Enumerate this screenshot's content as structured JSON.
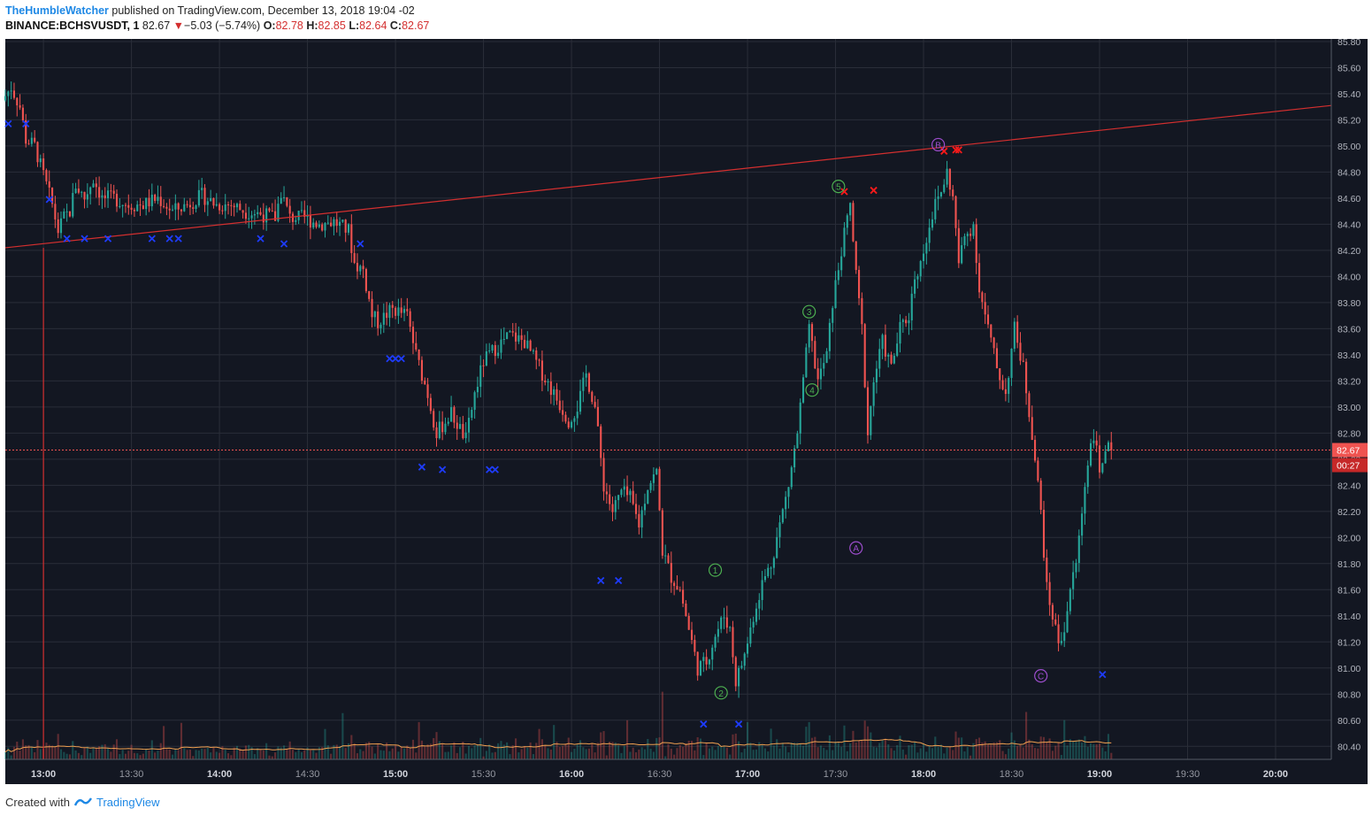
{
  "header": {
    "author": "TheHumbleWatcher",
    "published_text": "published on TradingView.com, December 13, 2018 19:04 -02",
    "symbol": "BINANCE:BCHSVUSDT, 1",
    "last": "82.67",
    "change_arrow": "▼",
    "change": "−5.03 (−5.74%)",
    "open_label": "O:",
    "open": "82.78",
    "high_label": "H:",
    "high": "82.85",
    "low_label": "L:",
    "low": "82.64",
    "close_label": "C:",
    "close": "82.67"
  },
  "footer": {
    "created_with": "Created with",
    "brand": "TradingView"
  },
  "price_tag": {
    "price": "82.67",
    "countdown": "00:27"
  },
  "colors": {
    "background": "#131722",
    "up": "#26a69a",
    "down": "#ef5350",
    "trendline": "#d32f2f",
    "current_line": "#ef5350",
    "grid": "#2a2e39",
    "blue_marker": "#1e3cff",
    "red_marker": "#ff1a1a",
    "wave_green": "#4caf50",
    "wave_purple": "#9c4dcc",
    "volume_ma": "#f0a050"
  },
  "chart_data": {
    "type": "candlestick",
    "x_axis_type": "time",
    "x_ticks": [
      "13:00",
      "13:30",
      "14:00",
      "14:30",
      "15:00",
      "15:30",
      "16:00",
      "16:30",
      "17:00",
      "17:30",
      "18:00",
      "18:30",
      "19:00",
      "19:30",
      "20:00"
    ],
    "x_range": [
      "12:47",
      "20:19"
    ],
    "y_ticks": [
      "80.40",
      "80.60",
      "80.80",
      "81.00",
      "81.20",
      "81.40",
      "81.60",
      "81.80",
      "82.00",
      "82.20",
      "82.40",
      "82.60",
      "82.80",
      "83.00",
      "83.20",
      "83.40",
      "83.60",
      "83.80",
      "84.00",
      "84.20",
      "84.40",
      "84.60",
      "84.80",
      "85.00",
      "85.20",
      "85.40",
      "85.60",
      "85.80"
    ],
    "y_range": [
      80.3,
      85.82
    ],
    "grid": true,
    "price_path": [
      [
        "12:47",
        85.35
      ],
      [
        "12:50",
        85.45
      ],
      [
        "12:53",
        85.3
      ],
      [
        "12:55",
        85.05
      ],
      [
        "12:58",
        85.0
      ],
      [
        "13:00",
        84.85
      ],
      [
        "13:02",
        84.7
      ],
      [
        "13:04",
        84.55
      ],
      [
        "13:06",
        84.35
      ],
      [
        "13:08",
        84.45
      ],
      [
        "13:10",
        84.5
      ],
      [
        "13:12",
        84.7
      ],
      [
        "13:15",
        84.6
      ],
      [
        "13:18",
        84.75
      ],
      [
        "13:21",
        84.6
      ],
      [
        "13:25",
        84.6
      ],
      [
        "13:30",
        84.55
      ],
      [
        "13:35",
        84.55
      ],
      [
        "13:40",
        84.6
      ],
      [
        "13:45",
        84.5
      ],
      [
        "13:50",
        84.55
      ],
      [
        "13:55",
        84.62
      ],
      [
        "14:00",
        84.55
      ],
      [
        "14:05",
        84.55
      ],
      [
        "14:10",
        84.5
      ],
      [
        "14:15",
        84.48
      ],
      [
        "14:20",
        84.45
      ],
      [
        "14:22",
        84.65
      ],
      [
        "14:25",
        84.45
      ],
      [
        "14:30",
        84.45
      ],
      [
        "14:35",
        84.4
      ],
      [
        "14:40",
        84.42
      ],
      [
        "14:45",
        84.35
      ],
      [
        "14:47",
        84.1
      ],
      [
        "14:50",
        84.05
      ],
      [
        "14:53",
        83.7
      ],
      [
        "14:55",
        83.65
      ],
      [
        "15:00",
        83.75
      ],
      [
        "15:05",
        83.7
      ],
      [
        "15:08",
        83.4
      ],
      [
        "15:12",
        83.1
      ],
      [
        "15:15",
        82.8
      ],
      [
        "15:20",
        82.95
      ],
      [
        "15:25",
        82.75
      ],
      [
        "15:28",
        83.1
      ],
      [
        "15:31",
        83.35
      ],
      [
        "15:35",
        83.45
      ],
      [
        "15:40",
        83.55
      ],
      [
        "15:45",
        83.5
      ],
      [
        "15:50",
        83.3
      ],
      [
        "15:55",
        83.1
      ],
      [
        "16:00",
        82.9
      ],
      [
        "16:03",
        83.0
      ],
      [
        "16:06",
        83.25
      ],
      [
        "16:09",
        83.0
      ],
      [
        "16:12",
        82.4
      ],
      [
        "16:15",
        82.2
      ],
      [
        "16:18",
        82.35
      ],
      [
        "16:21",
        82.3
      ],
      [
        "16:24",
        82.1
      ],
      [
        "16:27",
        82.4
      ],
      [
        "16:30",
        82.5
      ],
      [
        "16:32",
        81.9
      ],
      [
        "16:35",
        81.7
      ],
      [
        "16:38",
        81.6
      ],
      [
        "16:41",
        81.3
      ],
      [
        "16:44",
        81.0
      ],
      [
        "16:47",
        81.05
      ],
      [
        "16:50",
        81.25
      ],
      [
        "16:53",
        81.4
      ],
      [
        "16:55",
        81.3
      ],
      [
        "16:57",
        80.9
      ],
      [
        "17:00",
        81.1
      ],
      [
        "17:03",
        81.4
      ],
      [
        "17:06",
        81.65
      ],
      [
        "17:09",
        81.8
      ],
      [
        "17:12",
        82.1
      ],
      [
        "17:15",
        82.4
      ],
      [
        "17:18",
        82.8
      ],
      [
        "17:20",
        83.2
      ],
      [
        "17:22",
        83.6
      ],
      [
        "17:25",
        83.2
      ],
      [
        "17:28",
        83.4
      ],
      [
        "17:30",
        83.8
      ],
      [
        "17:33",
        84.2
      ],
      [
        "17:36",
        84.55
      ],
      [
        "17:38",
        84.0
      ],
      [
        "17:40",
        83.6
      ],
      [
        "17:42",
        82.8
      ],
      [
        "17:44",
        83.2
      ],
      [
        "17:47",
        83.5
      ],
      [
        "17:50",
        83.3
      ],
      [
        "17:53",
        83.6
      ],
      [
        "17:56",
        83.7
      ],
      [
        "17:58",
        84.0
      ],
      [
        "18:00",
        84.1
      ],
      [
        "18:03",
        84.4
      ],
      [
        "18:05",
        84.55
      ],
      [
        "18:07",
        84.65
      ],
      [
        "18:09",
        84.8
      ],
      [
        "18:11",
        84.6
      ],
      [
        "18:13",
        84.1
      ],
      [
        "18:15",
        84.3
      ],
      [
        "18:18",
        84.4
      ],
      [
        "18:20",
        83.9
      ],
      [
        "18:23",
        83.6
      ],
      [
        "18:26",
        83.3
      ],
      [
        "18:29",
        83.1
      ],
      [
        "18:32",
        83.6
      ],
      [
        "18:35",
        83.3
      ],
      [
        "18:38",
        82.8
      ],
      [
        "18:41",
        82.2
      ],
      [
        "18:43",
        81.6
      ],
      [
        "18:45",
        81.4
      ],
      [
        "18:47",
        81.2
      ],
      [
        "18:49",
        81.3
      ],
      [
        "18:51",
        81.6
      ],
      [
        "18:53",
        81.8
      ],
      [
        "18:55",
        82.2
      ],
      [
        "18:57",
        82.6
      ],
      [
        "18:59",
        82.8
      ],
      [
        "19:01",
        82.5
      ],
      [
        "19:03",
        82.7
      ],
      [
        "19:04",
        82.67
      ]
    ],
    "trendlines": [
      {
        "from": [
          "12:47",
          84.22
        ],
        "to": [
          "20:19",
          85.31
        ]
      }
    ],
    "vertical_line": "13:00",
    "current_price": 82.67,
    "blue_x_markers": [
      [
        "12:48",
        85.17
      ],
      [
        "12:54",
        85.17
      ],
      [
        "13:02",
        84.59
      ],
      [
        "13:08",
        84.29
      ],
      [
        "13:14",
        84.29
      ],
      [
        "13:22",
        84.29
      ],
      [
        "13:37",
        84.29
      ],
      [
        "13:43",
        84.29
      ],
      [
        "13:46",
        84.29
      ],
      [
        "14:14",
        84.29
      ],
      [
        "14:22",
        84.25
      ],
      [
        "14:48",
        84.25
      ],
      [
        "14:58",
        83.37
      ],
      [
        "15:00",
        83.37
      ],
      [
        "15:02",
        83.37
      ],
      [
        "15:09",
        82.54
      ],
      [
        "15:16",
        82.52
      ],
      [
        "15:32",
        82.52
      ],
      [
        "15:34",
        82.52
      ],
      [
        "16:10",
        81.67
      ],
      [
        "16:16",
        81.67
      ],
      [
        "16:45",
        80.57
      ],
      [
        "16:57",
        80.57
      ],
      [
        "19:01",
        80.95
      ]
    ],
    "red_x_markers": [
      [
        "17:33",
        84.65
      ],
      [
        "17:43",
        84.66
      ],
      [
        "18:07",
        84.96
      ],
      [
        "18:11",
        84.97
      ],
      [
        "18:12",
        84.97
      ]
    ],
    "wave_labels": [
      {
        "label": "1",
        "time": "16:49",
        "price": 81.75,
        "color": "green"
      },
      {
        "label": "2",
        "time": "16:51",
        "price": 80.81,
        "color": "green"
      },
      {
        "label": "3",
        "time": "17:21",
        "price": 83.73,
        "color": "green"
      },
      {
        "label": "4",
        "time": "17:22",
        "price": 83.13,
        "color": "green"
      },
      {
        "label": "5",
        "time": "17:31",
        "price": 84.69,
        "color": "green"
      },
      {
        "label": "A",
        "time": "17:37",
        "price": 81.92,
        "color": "purple"
      },
      {
        "label": "B",
        "time": "18:05",
        "price": 85.01,
        "color": "purple"
      },
      {
        "label": "C",
        "time": "18:40",
        "price": 80.94,
        "color": "purple"
      }
    ]
  }
}
